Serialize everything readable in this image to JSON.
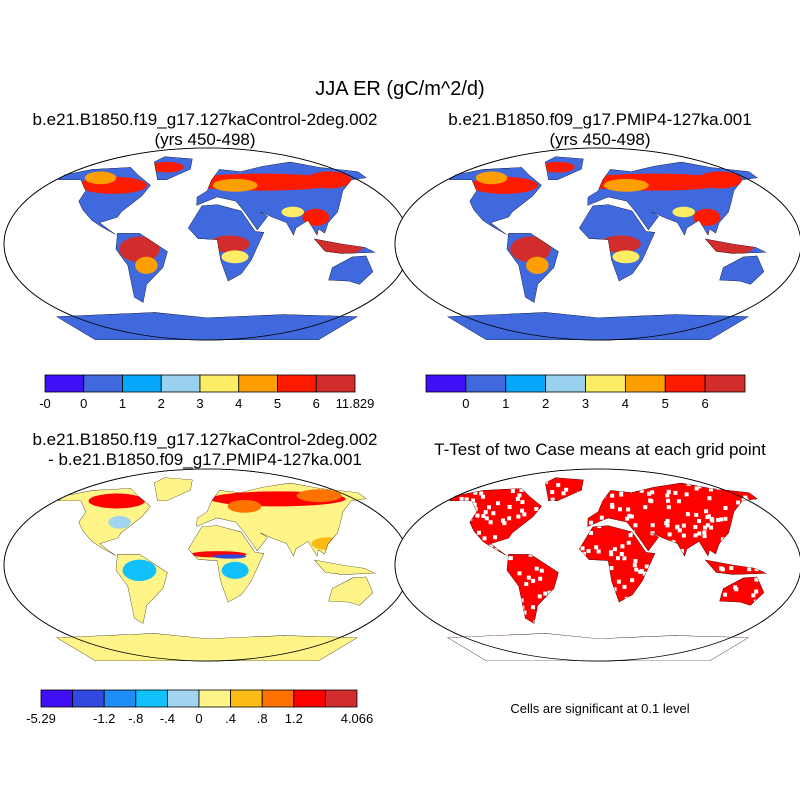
{
  "title": "JJA ER (gC/m^2/d)",
  "panels": [
    {
      "title_line1": "b.e21.B1850.f19_g17.127kaControl-2deg.002",
      "title_line2": "(yrs 450-498)"
    },
    {
      "title_line1": "b.e21.B1850.f09_g17.PMIP4-127ka.001",
      "title_line2": "(yrs 450-498)"
    },
    {
      "title_line1": "b.e21.B1850.f19_g17.127kaControl-2deg.002",
      "title_line2": "- b.e21.B1850.f09_g17.PMIP4-127ka.001"
    },
    {
      "title_line1": "T-Test of two Case means at each grid point",
      "note": "Cells are significant at 0.1 level"
    }
  ],
  "chart_data": [
    {
      "type": "heatmap",
      "map": "world",
      "colorbar": {
        "colors": [
          "#3f10f5",
          "#4169de",
          "#07a8fc",
          "#99d1ee",
          "#fded66",
          "#fd9f00",
          "#fd1b00",
          "#d12d2d"
        ],
        "labels": [
          "-0",
          "0",
          "1",
          "2",
          "3",
          "4",
          "5",
          "6",
          "11.829"
        ]
      }
    },
    {
      "type": "heatmap",
      "map": "world",
      "colorbar": {
        "colors": [
          "#3f10f5",
          "#4169de",
          "#07a8fc",
          "#99d1ee",
          "#fded66",
          "#fd9f00",
          "#fd1b00",
          "#d12d2d"
        ],
        "labels": [
          "0",
          "1",
          "2",
          "3",
          "4",
          "5",
          "6"
        ]
      }
    },
    {
      "type": "heatmap",
      "map": "world",
      "colorbar": {
        "colors": [
          "#3f10f5",
          "#3249e0",
          "#1e8df5",
          "#12c0fc",
          "#a2d4f0",
          "#fef487",
          "#fdbb16",
          "#fd7200",
          "#fd0000",
          "#d12d2d"
        ],
        "labels": [
          "-5.29",
          "",
          "-1.2",
          "-.8",
          "-.4",
          "0",
          ".4",
          ".8",
          "1.2",
          "",
          "4.066"
        ]
      }
    },
    {
      "type": "heatmap",
      "map": "world",
      "significance_color": "#ff0000"
    }
  ]
}
